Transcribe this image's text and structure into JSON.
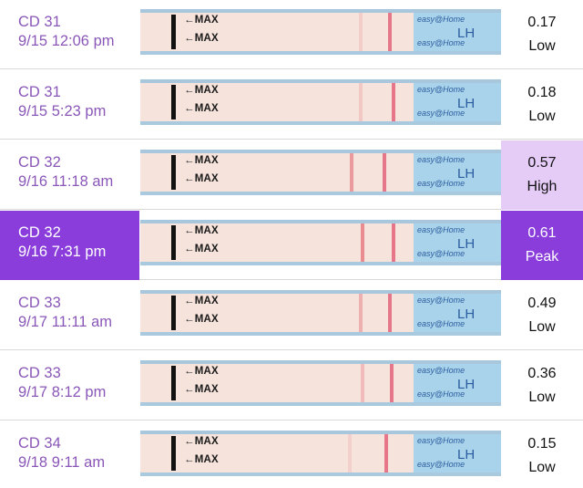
{
  "entries": [
    {
      "cycle_day": "CD 31",
      "datetime": "9/15 12:06 pm",
      "value": "0.17",
      "level": "Low"
    },
    {
      "cycle_day": "CD 31",
      "datetime": "9/15 5:23 pm",
      "value": "0.18",
      "level": "Low"
    },
    {
      "cycle_day": "CD 32",
      "datetime": "9/16 11:18 am",
      "value": "0.57",
      "level": "High"
    },
    {
      "cycle_day": "CD 32",
      "datetime": "9/16 7:31 pm",
      "value": "0.61",
      "level": "Peak"
    },
    {
      "cycle_day": "CD 33",
      "datetime": "9/17 11:11 am",
      "value": "0.49",
      "level": "Low"
    },
    {
      "cycle_day": "CD 33",
      "datetime": "9/17 8:12 pm",
      "value": "0.36",
      "level": "Low"
    },
    {
      "cycle_day": "CD 34",
      "datetime": "9/18 9:11 am",
      "value": "0.15",
      "level": "Low"
    }
  ],
  "strip_text": {
    "max_marker": "←MAX",
    "brand_small": "easy@Home",
    "brand_test": "LH"
  },
  "colors": {
    "accent_peak": "#8a3ddb",
    "accent_high": "#e5ccf7",
    "label_text": "#8a57b8"
  }
}
